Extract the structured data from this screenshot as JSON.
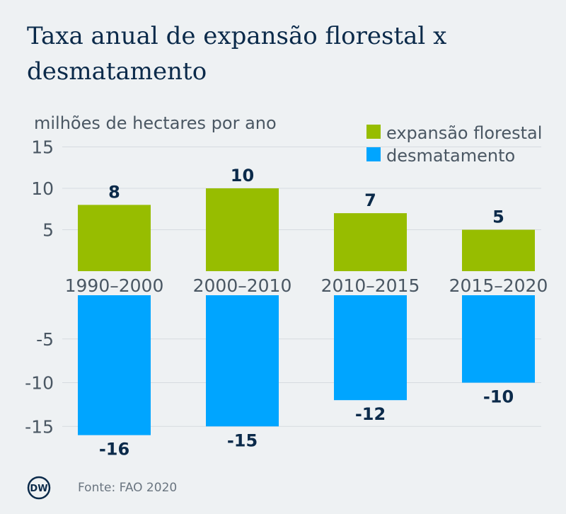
{
  "title": "Taxa anual de expansão florestal x desmatamento",
  "source": "Fonte: FAO 2020",
  "logo": "DW",
  "colors": {
    "expansion": "#97bd00",
    "deforestation": "#00a5ff",
    "text_dark": "#0b2a4a",
    "text_gray": "#4a5763",
    "grid": "#d6dbe0"
  },
  "chart_data": {
    "type": "bar",
    "title": "Taxa anual de expansão florestal x desmatamento",
    "unit_label": "milhões de hectares por ano",
    "categories": [
      "1990–2000",
      "2000–2010",
      "2010–2015",
      "2015–2020"
    ],
    "series": [
      {
        "name": "expansão florestal",
        "values": [
          8,
          10,
          7,
          5
        ]
      },
      {
        "name": "desmatamento",
        "values": [
          -16,
          -15,
          -12,
          -10
        ]
      }
    ],
    "ylim": [
      -15,
      15
    ],
    "yticks": [
      15,
      10,
      5,
      -5,
      -10,
      -15
    ],
    "grid": true,
    "legend": "top-right"
  }
}
